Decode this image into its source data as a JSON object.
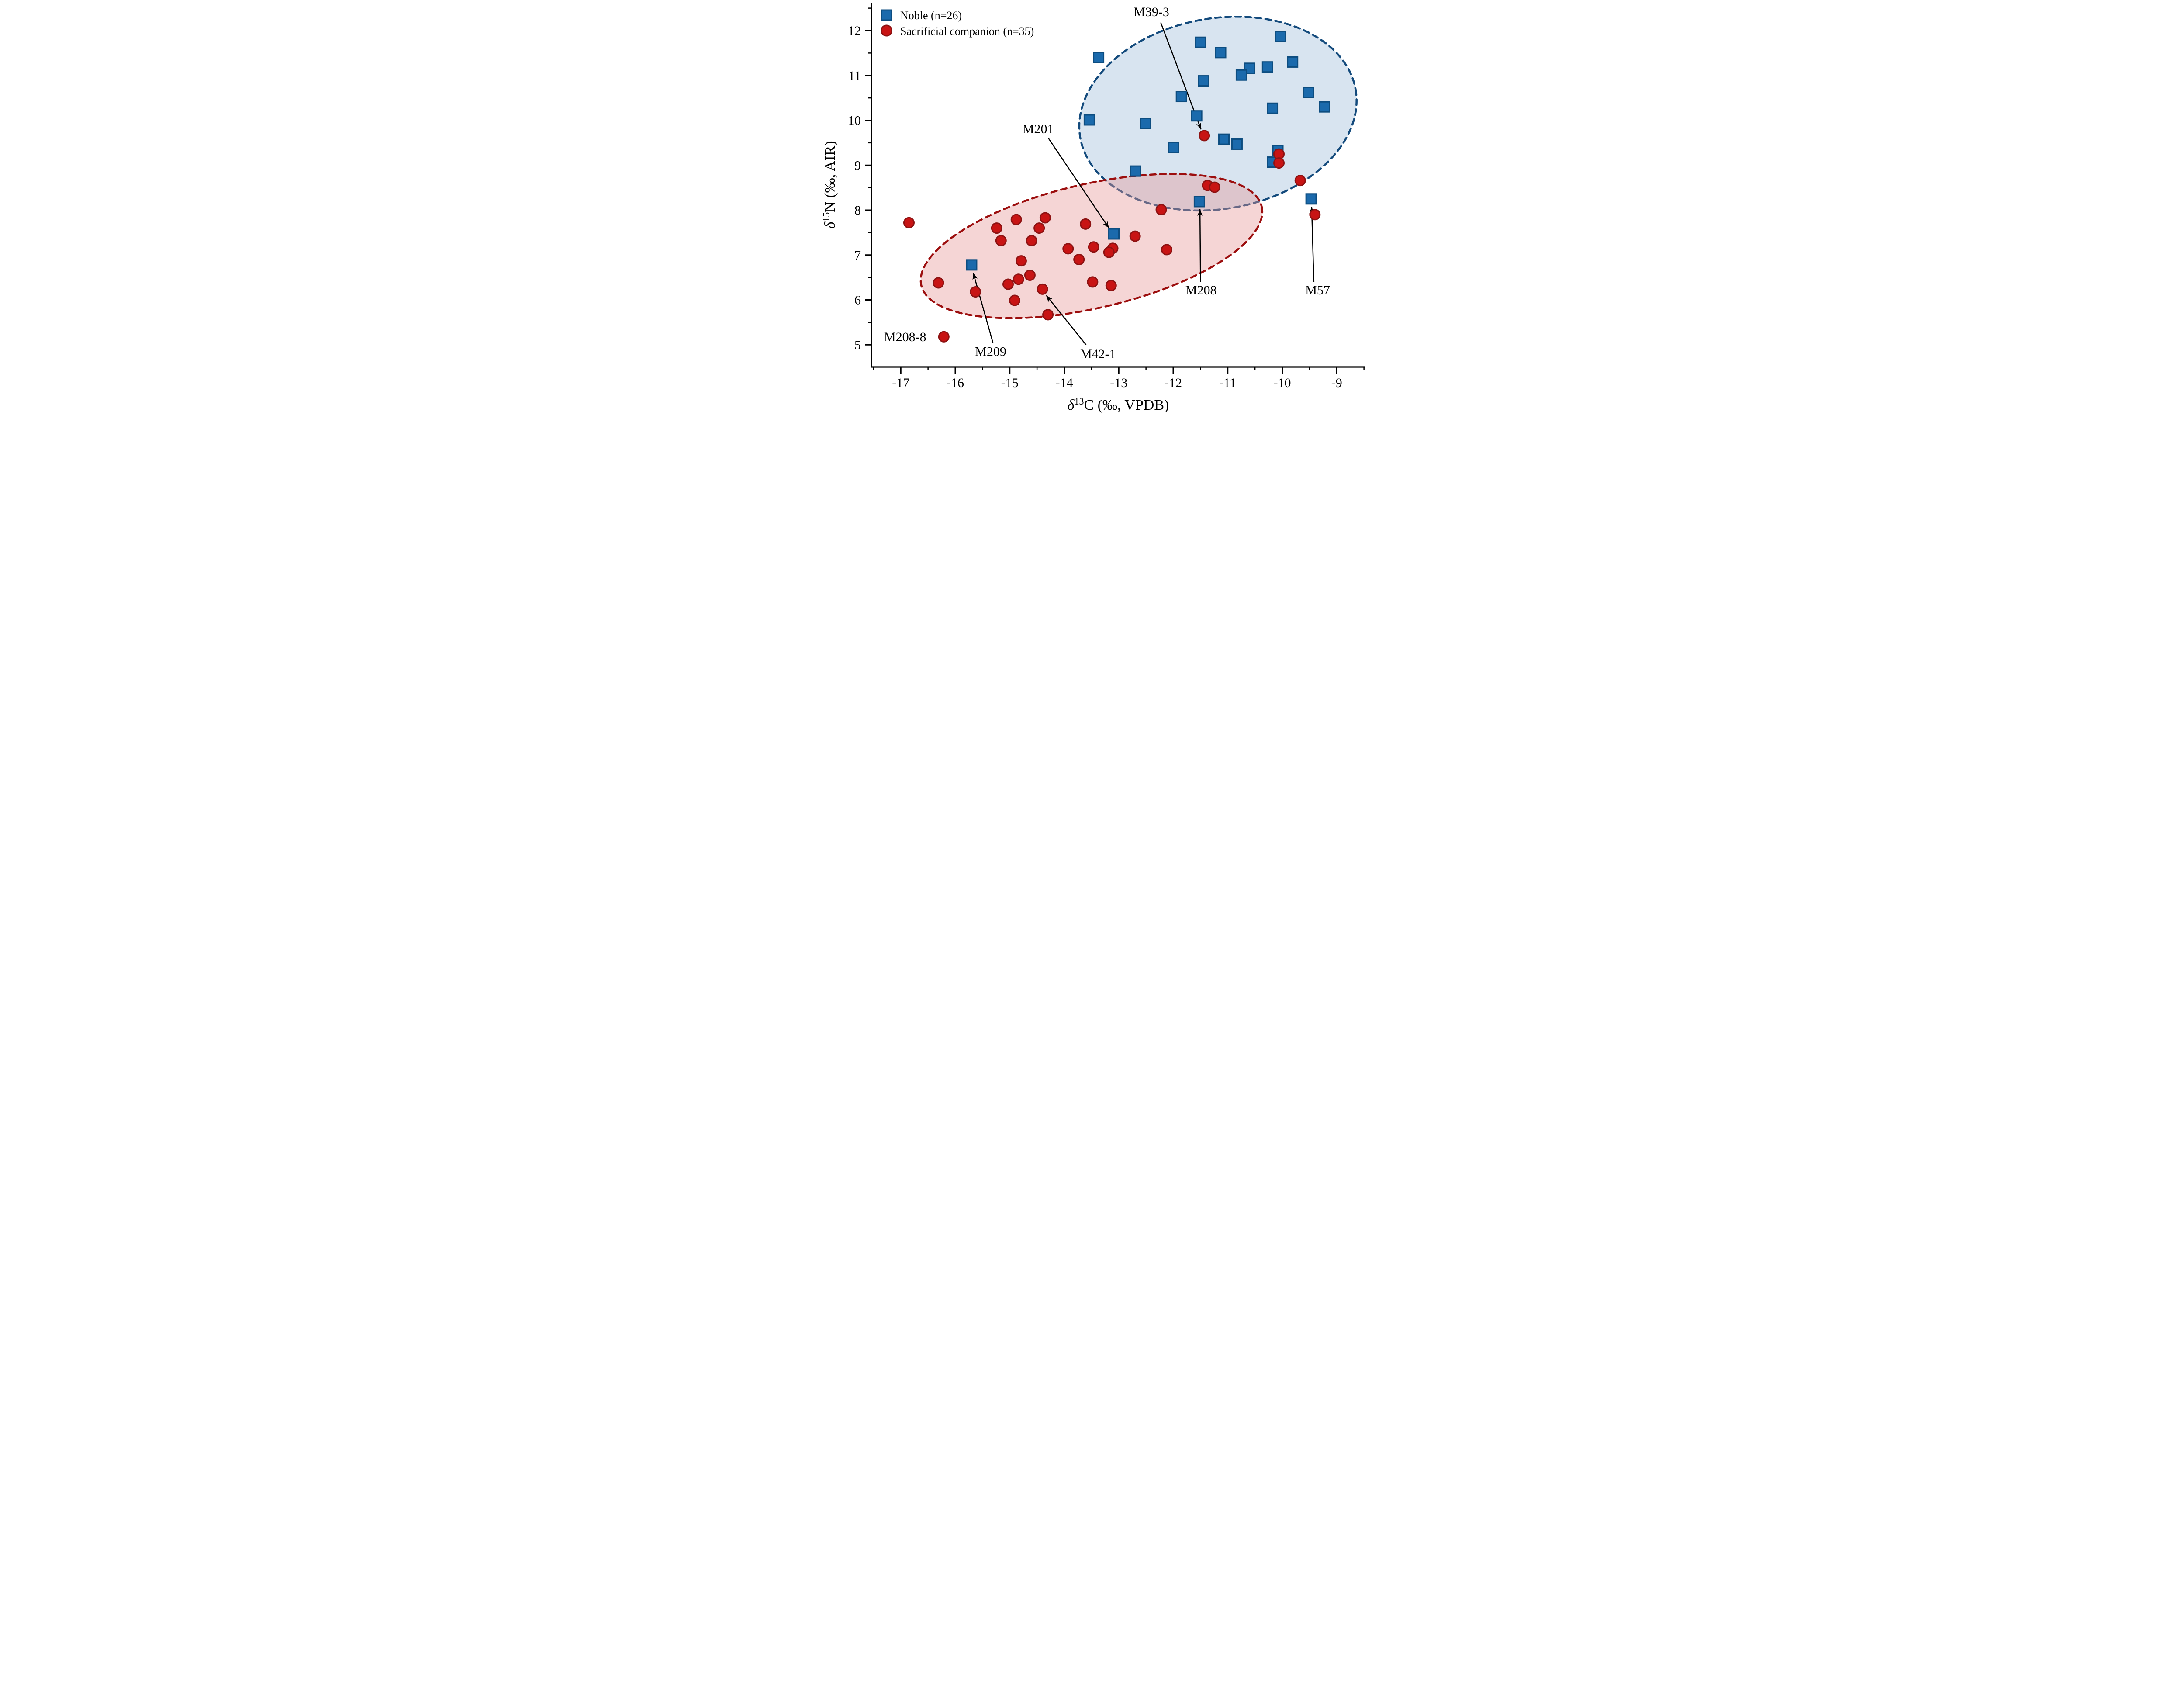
{
  "chart_data": {
    "type": "scatter",
    "title": "",
    "x_axis": {
      "title_delta": "δ",
      "title_sup": "13",
      "title_main": "C (‰, VPDB)",
      "min": -17.54,
      "max": -8.52,
      "major_ticks": [
        -17,
        -16,
        -15,
        -14,
        -13,
        -12,
        -11,
        -10,
        -9
      ],
      "major_tick_labels": [
        "-17",
        "-16",
        "-15",
        "-14",
        "-13",
        "-12",
        "-11",
        "-10",
        "-9"
      ],
      "minor_ticks": [
        -17.5,
        -16.5,
        -15.5,
        -14.5,
        -13.5,
        -12.5,
        -11.5,
        -10.5,
        -9.5,
        -8.5
      ],
      "grid": false
    },
    "y_axis": {
      "title_delta": "δ",
      "title_sup": "15",
      "title_main": "N (‰, AIR)",
      "min": 4.5,
      "max": 12.62,
      "major_ticks": [
        5,
        6,
        7,
        8,
        9,
        10,
        11,
        12
      ],
      "major_tick_labels": [
        "5",
        "6",
        "7",
        "8",
        "9",
        "10",
        "11",
        "12"
      ],
      "minor_ticks": [
        5.5,
        6.5,
        7.5,
        8.5,
        9.5,
        10.5,
        11.5,
        12.5
      ],
      "grid": false
    },
    "legend": {
      "position": "top-left"
    },
    "series": [
      {
        "name": "Noble (n=26)",
        "marker": "square",
        "fill": "#1b6aac",
        "stroke": "#0d4d80",
        "points": [
          [
            -13.37,
            11.4
          ],
          [
            -11.5,
            11.74
          ],
          [
            -11.13,
            11.51
          ],
          [
            -10.03,
            11.87
          ],
          [
            -10.6,
            11.16
          ],
          [
            -10.75,
            11.01
          ],
          [
            -10.27,
            11.19
          ],
          [
            -9.81,
            11.3
          ],
          [
            -11.44,
            10.88
          ],
          [
            -11.85,
            10.53
          ],
          [
            -9.52,
            10.62
          ],
          [
            -10.18,
            10.27
          ],
          [
            -9.22,
            10.3
          ],
          [
            -11.57,
            10.1
          ],
          [
            -13.54,
            10.01
          ],
          [
            -12.51,
            9.93
          ],
          [
            -12.0,
            9.4
          ],
          [
            -11.07,
            9.58
          ],
          [
            -10.83,
            9.47
          ],
          [
            -10.08,
            9.33
          ],
          [
            -10.18,
            9.07
          ],
          [
            -12.69,
            8.87
          ],
          [
            -11.52,
            8.19
          ],
          [
            -9.47,
            8.25
          ],
          [
            -13.09,
            7.47
          ],
          [
            -15.7,
            6.78
          ]
        ]
      },
      {
        "name": "Sacrificial companion (n=35)",
        "marker": "circle",
        "fill": "#c81414",
        "stroke": "#8e1313",
        "points": [
          [
            -16.85,
            7.72
          ],
          [
            -16.31,
            6.38
          ],
          [
            -16.21,
            5.18
          ],
          [
            -15.63,
            6.18
          ],
          [
            -15.24,
            7.6
          ],
          [
            -14.88,
            7.79
          ],
          [
            -15.16,
            7.32
          ],
          [
            -14.35,
            7.83
          ],
          [
            -14.46,
            7.6
          ],
          [
            -14.6,
            7.32
          ],
          [
            -13.61,
            7.69
          ],
          [
            -13.93,
            7.14
          ],
          [
            -13.73,
            6.9
          ],
          [
            -13.46,
            7.18
          ],
          [
            -13.11,
            7.15
          ],
          [
            -13.18,
            7.06
          ],
          [
            -12.7,
            7.42
          ],
          [
            -14.79,
            6.87
          ],
          [
            -14.63,
            6.55
          ],
          [
            -14.84,
            6.46
          ],
          [
            -15.03,
            6.35
          ],
          [
            -14.4,
            6.24
          ],
          [
            -14.91,
            5.99
          ],
          [
            -14.3,
            5.67
          ],
          [
            -13.48,
            6.4
          ],
          [
            -13.14,
            6.32
          ],
          [
            -12.22,
            8.01
          ],
          [
            -12.12,
            7.12
          ],
          [
            -11.43,
            9.66
          ],
          [
            -11.37,
            8.55
          ],
          [
            -11.24,
            8.51
          ],
          [
            -10.06,
            9.25
          ],
          [
            -10.06,
            9.05
          ],
          [
            -9.67,
            8.66
          ],
          [
            -9.4,
            7.9
          ]
        ]
      }
    ],
    "ellipses": [
      {
        "group": "Noble",
        "center": [
          -11.18,
          10.15
        ],
        "semi_major": 2.565,
        "semi_minor": 1.748,
        "rotation_deg": -10,
        "stroke": "#134a7c",
        "fill": "rgba(125,165,205,0.30)"
      },
      {
        "group": "Sacrificial companion",
        "center": [
          -13.5,
          7.2
        ],
        "semi_major": 3.206,
        "semi_minor": 1.138,
        "rotation_deg": -13,
        "stroke": "#9c0e0e",
        "fill": "rgba(230,150,150,0.40)"
      }
    ],
    "annotations": [
      {
        "label": "M39-3",
        "label_pos": [
          -12.4,
          12.42
        ],
        "arrow_from": [
          -12.23,
          12.18
        ],
        "arrow_to": [
          -11.49,
          9.8
        ]
      },
      {
        "label": "M201",
        "label_pos": [
          -14.48,
          9.81
        ],
        "arrow_from": [
          -14.29,
          9.6
        ],
        "arrow_to": [
          -13.18,
          7.6
        ]
      },
      {
        "label": "M208",
        "label_pos": [
          -11.49,
          6.22
        ],
        "arrow_from": [
          -11.5,
          6.4
        ],
        "arrow_to": [
          -11.51,
          8.02
        ]
      },
      {
        "label": "M57",
        "label_pos": [
          -9.35,
          6.22
        ],
        "arrow_from": [
          -9.42,
          6.4
        ],
        "arrow_to": [
          -9.46,
          8.07
        ]
      },
      {
        "label": "M209",
        "label_pos": [
          -15.35,
          4.85
        ],
        "arrow_from": [
          -15.31,
          5.05
        ],
        "arrow_to": [
          -15.67,
          6.6
        ]
      },
      {
        "label": "M42-1",
        "label_pos": [
          -13.38,
          4.8
        ],
        "arrow_from": [
          -13.6,
          5.0
        ],
        "arrow_to": [
          -14.33,
          6.1
        ]
      },
      {
        "label": "M208-8",
        "label_pos": [
          -16.92,
          5.18
        ],
        "arrow_from": null,
        "arrow_to": null
      }
    ]
  }
}
